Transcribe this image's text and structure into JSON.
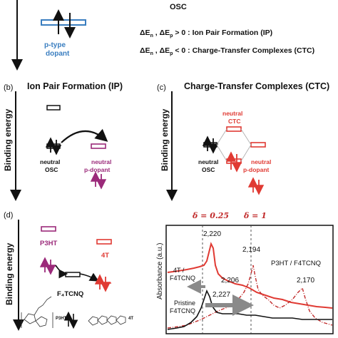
{
  "panel_a": {
    "osc": "OSC",
    "dopant_line1": "p-type",
    "dopant_line2": "dopant",
    "rule_ip_prefix": "ΔE",
    "rule_ip_n": "n",
    "rule_ip_sep": " ,  ΔE",
    "rule_ip_p": "p",
    "rule_ip_text": " > 0 : Ion Pair Formation (IP)",
    "rule_ctc_prefix": "ΔE",
    "rule_ctc_n": "n",
    "rule_ctc_sep": " ,  ΔE",
    "rule_ctc_p": "p",
    "rule_ctc_text": " < 0 : Charge-Transfer Complexes (CTC)"
  },
  "panel_b": {
    "label": "(b)",
    "title": "Ion Pair Formation (IP)",
    "axis": "Binding energy",
    "osc_line1": "neutral",
    "osc_line2": "OSC",
    "dopant_line1": "neutral",
    "dopant_line2": "p-dopant"
  },
  "panel_c": {
    "label": "(c)",
    "title": "Charge-Transfer Complexes (CTC)",
    "axis": "Binding energy",
    "ctc_line1": "neutral",
    "ctc_line2": "CTC",
    "osc_line1": "neutral",
    "osc_line2": "OSC",
    "dopant_line1": "neutral",
    "dopant_line2": "p-dopant"
  },
  "panel_d": {
    "label": "(d)",
    "axis": "Binding energy",
    "p3ht": "P3HT",
    "t4": "4T",
    "f4tcnq": "F₄TCNQ",
    "mol_p3ht": "P3HT",
    "mol_4t": "4T"
  },
  "spectrum": {
    "ylabel": "Absorbance (a.u.)",
    "delta1": "δ = 0.25",
    "delta2": "δ = 1",
    "peak_2220": "2,220",
    "peak_2194": "2,194",
    "peak_2206": "2,206",
    "peak_2170": "2,170",
    "peak_2227": "2,227",
    "label_4t_line1": "4T /",
    "label_4t_line2": "F4TCNQ",
    "label_p3ht": "P3HT / F4TCNQ",
    "label_pristine_line1": "Pristine",
    "label_pristine_line2": "F4TCNQ"
  },
  "colors": {
    "red": "#e03a33",
    "purple": "#9b2a7a",
    "blue": "#3a7ec0",
    "dark_red": "#c12b2b",
    "gray_arrow": "#8a8a8a"
  }
}
